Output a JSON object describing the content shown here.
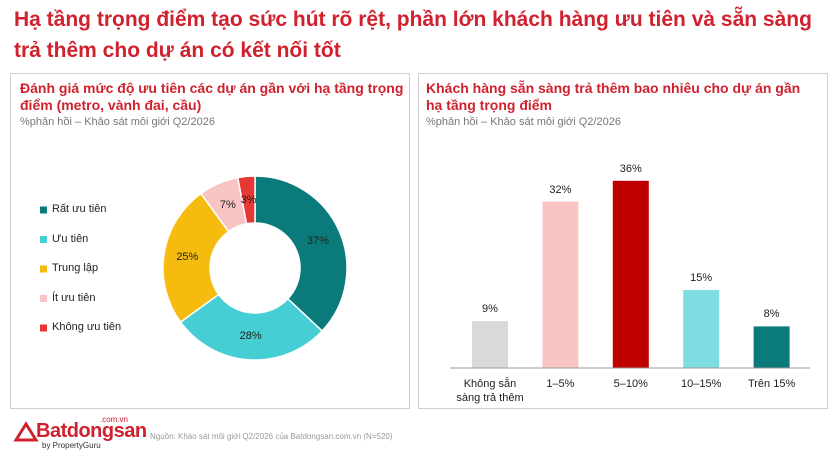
{
  "title": "Hạ tầng trọng điểm tạo sức hút rõ rệt, phần lớn khách hàng ưu tiên và sẵn sàng trả thêm cho dự án có kết nối tốt",
  "chart_data": [
    {
      "type": "donut",
      "title": "Đánh giá mức độ ưu tiên các dự án gần với hạ tầng trọng điểm (metro, vành đai, cầu)",
      "subtitle": "%phản hồi – Khảo sát môi giới Q2/2026",
      "categories": [
        "Rất ưu tiên",
        "Ưu tiên",
        "Trung lập",
        "Ít ưu tiên",
        "Không ưu tiên"
      ],
      "values": [
        37,
        28,
        25,
        7,
        3
      ],
      "value_labels": [
        "37%",
        "28%",
        "25%",
        "7%",
        "3%"
      ],
      "colors": [
        "#0b7a7a",
        "#45cfd4",
        "#f5bb0f",
        "#f9c4c4",
        "#e53935"
      ]
    },
    {
      "type": "bar",
      "title": "Khách hàng sẵn sàng trả thêm bao nhiêu cho dự án gần hạ tầng trọng điểm",
      "subtitle": "%phản hồi – Khảo sát môi giới Q2/2026",
      "categories": [
        "Không sẵn sàng trả thêm",
        "1–5%",
        "5–10%",
        "10–15%",
        "Trên 15%"
      ],
      "values": [
        9,
        32,
        36,
        15,
        8
      ],
      "value_labels": [
        "9%",
        "32%",
        "36%",
        "15%",
        "8%"
      ],
      "colors": [
        "#d9d9d9",
        "#f9c4c4",
        "#c00000",
        "#7fdde2",
        "#0b7a7a"
      ]
    }
  ],
  "footer": {
    "source": "Nguồn: Khảo sát môi giới Q2/2026 của Batdongsan.com.vn (N=520)",
    "logo": "Batdongsan",
    "logo_domain": ".com.vn",
    "logo_by": "by PropertyGuru"
  }
}
